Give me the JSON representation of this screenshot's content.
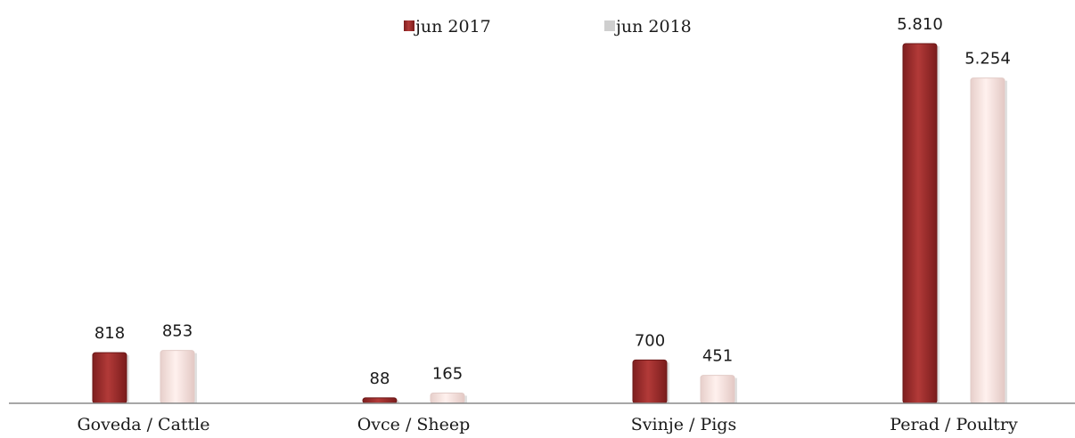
{
  "chart_data": {
    "type": "bar",
    "categories": [
      "Goveda / Cattle",
      "Ovce / Sheep",
      "Svinje / Pigs",
      "Perad / Poultry"
    ],
    "series": [
      {
        "name": "jun 2017",
        "values": [
          818,
          88,
          700,
          5810
        ],
        "labels": [
          "818",
          "88",
          "700",
          "5.810"
        ]
      },
      {
        "name": "jun 2018",
        "values": [
          853,
          165,
          451,
          5254
        ],
        "labels": [
          "853",
          "165",
          "451",
          "5.254"
        ]
      }
    ],
    "title": "",
    "xlabel": "",
    "ylabel": "",
    "ylim": [
      0,
      5810
    ],
    "grid": false,
    "legend": "top",
    "colors": {
      "jun 2017": "#a8302f",
      "jun 2018": "#fbe6e3"
    }
  }
}
